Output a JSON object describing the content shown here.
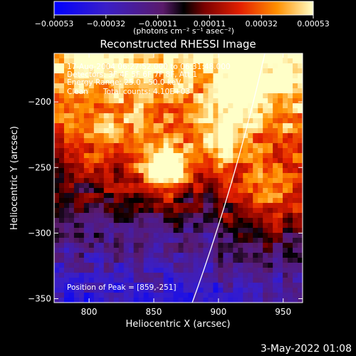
{
  "chart_data": {
    "type": "heatmap",
    "title": "Reconstructed RHESSI Image",
    "xlabel": "Heliocentric X (arcsec)",
    "ylabel": "Heliocentric Y (arcsec)",
    "xlim": [
      773,
      965
    ],
    "ylim": [
      -353,
      -163
    ],
    "x_ticks": [
      800,
      850,
      900,
      950
    ],
    "y_ticks": [
      -350,
      -300,
      -250,
      -200
    ],
    "x_tick_labels": [
      "800",
      "850",
      "900",
      "950"
    ],
    "y_tick_labels": [
      "−350",
      "−300",
      "−250",
      "−200"
    ],
    "colorbar": {
      "range": [
        -0.00053,
        0.00053
      ],
      "tick_labels": [
        "−0.00053",
        "−0.00032",
        "−0.00011",
        "0.00011",
        "0.00032",
        "0.00053"
      ],
      "unit_label": "(photons cm⁻² s⁻¹ asec⁻²)"
    },
    "annotations": [
      "17-Aug-2004 06:27:52.000 to 06:31:48.000",
      "Detectors: 3F 4F 5F 6F 7F 8F, Att 1",
      "Energy Range: 25.0 - 50.0 keV",
      "Clean",
      "Total counts: 4.10E+03"
    ],
    "peak_label": "Position of Peak = [859,-251]",
    "peak": [
      859,
      -251
    ]
  },
  "footer": {
    "date": "3-May-2022 01:08"
  }
}
